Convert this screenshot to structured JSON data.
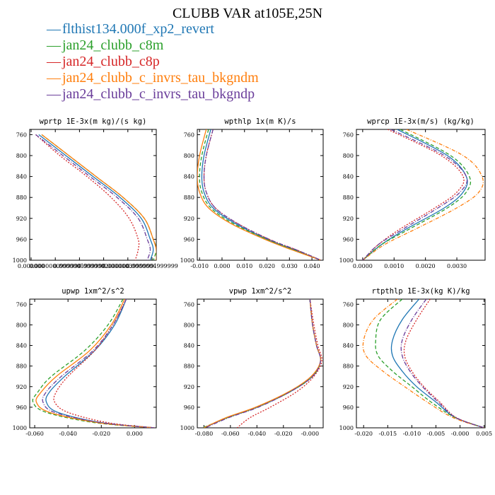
{
  "title": "CLUBB VAR at105E,25N",
  "legend": [
    {
      "name": "flthist134.000f_xp2_revert",
      "color": "#1f77b4"
    },
    {
      "name": "jan24_clubb_c8m",
      "color": "#2ca02c"
    },
    {
      "name": "jan24_clubb_c8p",
      "color": "#d62728"
    },
    {
      "name": "jan24_clubb_c_invrs_tau_bkgndm",
      "color": "#ff7f0e"
    },
    {
      "name": "jan24_clubb_c_invrs_tau_bkgndp",
      "color": "#6a3d9a"
    }
  ],
  "chart_data": [
    {
      "type": "line",
      "title": "wprtp  1E-3x(m kg)/(s kg)",
      "xlim": [
        0.0,
        4.2e-06
      ],
      "ylim": [
        1000,
        750
      ],
      "yticks": [
        "760",
        "800",
        "840",
        "880",
        "920",
        "960",
        "1000"
      ],
      "xticks": [
        "0.000000",
        "0.0000000999999",
        "0.0000001999999",
        "0.0000002000000",
        "0.0000003999999",
        "0.0000004999999"
      ],
      "y": [
        760,
        800,
        840,
        880,
        920,
        960,
        980,
        1000
      ],
      "series": [
        {
          "name": "flthist134.000f_xp2_revert",
          "color": "#1f77b4",
          "dash": "",
          "x": [
            3e-07,
            1.2e-06,
            2.1e-06,
            3e-06,
            3.7e-06,
            4e-06,
            4.1e-06,
            4e-06
          ]
        },
        {
          "name": "jan24_clubb_c8m",
          "color": "#2ca02c",
          "dash": "5,3",
          "x": [
            4e-07,
            1.3e-06,
            2.2e-06,
            3.1e-06,
            3.8e-06,
            4.1e-06,
            4.2e-06,
            4.1e-06
          ]
        },
        {
          "name": "jan24_clubb_c8p",
          "color": "#d62728",
          "dash": "2,2",
          "x": [
            2e-07,
            1e-06,
            1.9e-06,
            2.7e-06,
            3.3e-06,
            3.6e-06,
            3.6e-06,
            3.5e-06
          ]
        },
        {
          "name": "jan24_clubb_c_invrs_tau_bkgndm",
          "color": "#ff7f0e",
          "dash": "",
          "x": [
            4e-07,
            1.3e-06,
            2.2e-06,
            3.1e-06,
            3.8e-06,
            4.1e-06,
            4.2e-06,
            4.2e-06
          ]
        },
        {
          "name": "jan24_clubb_c_invrs_tau_bkgndp",
          "color": "#6a3d9a",
          "dash": "6,2,1,2",
          "x": [
            2e-07,
            1.1e-06,
            2e-06,
            2.9e-06,
            3.6e-06,
            3.9e-06,
            4e-06,
            3.9e-06
          ]
        }
      ]
    },
    {
      "type": "line",
      "title": "wpthlp  1x(m K)/s",
      "xlim": [
        -0.011,
        0.045
      ],
      "ylim": [
        1000,
        750
      ],
      "yticks": [
        "760",
        "800",
        "840",
        "880",
        "920",
        "960",
        "1000"
      ],
      "xticks": [
        "-0.010",
        "0.000",
        "0.010",
        "0.020",
        "0.030",
        "0.040"
      ],
      "y": [
        750,
        800,
        840,
        870,
        900,
        930,
        960,
        980,
        1000
      ],
      "series": [
        {
          "name": "flthist134.000f_xp2_revert",
          "color": "#1f77b4",
          "dash": "",
          "x": [
            -0.005,
            -0.008,
            -0.009,
            -0.008,
            -0.004,
            0.006,
            0.02,
            0.032,
            0.044
          ]
        },
        {
          "name": "jan24_clubb_c8m",
          "color": "#2ca02c",
          "dash": "5,3",
          "x": [
            -0.006,
            -0.009,
            -0.01,
            -0.009,
            -0.005,
            0.005,
            0.02,
            0.032,
            0.044
          ]
        },
        {
          "name": "jan24_clubb_c8p",
          "color": "#d62728",
          "dash": "2,2",
          "x": [
            -0.004,
            -0.007,
            -0.008,
            -0.007,
            -0.003,
            0.007,
            0.021,
            0.033,
            0.044
          ]
        },
        {
          "name": "jan24_clubb_c_invrs_tau_bkgndm",
          "color": "#ff7f0e",
          "dash": "",
          "x": [
            -0.007,
            -0.01,
            -0.011,
            -0.01,
            -0.006,
            0.004,
            0.019,
            0.031,
            0.044
          ]
        },
        {
          "name": "jan24_clubb_c_invrs_tau_bkgndp",
          "color": "#6a3d9a",
          "dash": "6,2,1,2",
          "x": [
            -0.004,
            -0.007,
            -0.008,
            -0.007,
            -0.003,
            0.007,
            0.021,
            0.033,
            0.044
          ]
        }
      ]
    },
    {
      "type": "line",
      "title": "wprcp  1E-3x(m/s) (kg/kg)",
      "xlim": [
        -0.0002,
        0.0039
      ],
      "ylim": [
        1000,
        750
      ],
      "yticks": [
        "760",
        "800",
        "840",
        "880",
        "920",
        "960",
        "1000"
      ],
      "xticks": [
        "0.0000",
        "0.0010",
        "0.0020",
        "0.0030"
      ],
      "y": [
        750,
        800,
        840,
        870,
        900,
        940,
        970,
        1000
      ],
      "series": [
        {
          "name": "flthist134.000f_xp2_revert",
          "color": "#1f77b4",
          "dash": "",
          "x": [
            0.0011,
            0.0027,
            0.0033,
            0.0032,
            0.0026,
            0.0014,
            0.0006,
            0.0
          ]
        },
        {
          "name": "jan24_clubb_c8m",
          "color": "#2ca02c",
          "dash": "5,3",
          "x": [
            0.0012,
            0.0028,
            0.0034,
            0.0033,
            0.0027,
            0.0015,
            0.0006,
            0.0
          ]
        },
        {
          "name": "jan24_clubb_c8p",
          "color": "#d62728",
          "dash": "2,2",
          "x": [
            0.0008,
            0.0025,
            0.0032,
            0.003,
            0.0023,
            0.0012,
            0.0005,
            0.0
          ]
        },
        {
          "name": "jan24_clubb_c_invrs_tau_bkgndm",
          "color": "#ff7f0e",
          "dash": "5,2,1,2",
          "x": [
            0.0014,
            0.0032,
            0.0038,
            0.0037,
            0.003,
            0.0017,
            0.0007,
            0.0
          ]
        },
        {
          "name": "jan24_clubb_c_invrs_tau_bkgndp",
          "color": "#6a3d9a",
          "dash": "6,2,1,2",
          "x": [
            0.0009,
            0.0026,
            0.0033,
            0.0031,
            0.0024,
            0.0013,
            0.0005,
            0.0
          ]
        }
      ]
    },
    {
      "type": "line",
      "title": "upwp  1xm^2/s^2",
      "xlim": [
        -0.063,
        0.013
      ],
      "ylim": [
        1000,
        750
      ],
      "yticks": [
        "760",
        "800",
        "840",
        "880",
        "920",
        "960",
        "1000"
      ],
      "xticks": [
        "-0.060",
        "-0.040",
        "-0.020",
        "0.000"
      ],
      "y": [
        750,
        800,
        850,
        900,
        930,
        950,
        970,
        990,
        1000
      ],
      "series": [
        {
          "name": "flthist134.000f_xp2_revert",
          "color": "#1f77b4",
          "dash": "",
          "x": [
            -0.005,
            -0.012,
            -0.024,
            -0.042,
            -0.051,
            -0.053,
            -0.046,
            -0.02,
            0.012
          ]
        },
        {
          "name": "jan24_clubb_c8m",
          "color": "#2ca02c",
          "dash": "5,3",
          "x": [
            -0.007,
            -0.016,
            -0.03,
            -0.05,
            -0.058,
            -0.061,
            -0.053,
            -0.024,
            0.012
          ]
        },
        {
          "name": "jan24_clubb_c8p",
          "color": "#d62728",
          "dash": "2,2",
          "x": [
            -0.005,
            -0.013,
            -0.024,
            -0.04,
            -0.047,
            -0.048,
            -0.04,
            -0.016,
            0.012
          ]
        },
        {
          "name": "jan24_clubb_c_invrs_tau_bkgndm",
          "color": "#ff7f0e",
          "dash": "",
          "x": [
            -0.006,
            -0.014,
            -0.027,
            -0.047,
            -0.056,
            -0.059,
            -0.051,
            -0.022,
            0.012
          ]
        },
        {
          "name": "jan24_clubb_c_invrs_tau_bkgndp",
          "color": "#6a3d9a",
          "dash": "6,2,1,2",
          "x": [
            -0.005,
            -0.013,
            -0.025,
            -0.044,
            -0.053,
            -0.055,
            -0.048,
            -0.02,
            0.012
          ]
        }
      ]
    },
    {
      "type": "line",
      "title": "vpwp  1xm^2/s^2",
      "xlim": [
        -0.085,
        0.01
      ],
      "ylim": [
        1000,
        750
      ],
      "yticks": [
        "760",
        "800",
        "840",
        "880",
        "920",
        "960",
        "1000"
      ],
      "xticks": [
        "-0.080",
        "-0.060",
        "-0.040",
        "-0.020",
        "-0.000"
      ],
      "y": [
        750,
        800,
        840,
        870,
        900,
        930,
        960,
        980,
        1000
      ],
      "series": [
        {
          "name": "flthist134.000f_xp2_revert",
          "color": "#1f77b4",
          "dash": "",
          "x": [
            0.0,
            0.002,
            0.005,
            0.008,
            0.002,
            -0.015,
            -0.04,
            -0.062,
            -0.08
          ]
        },
        {
          "name": "jan24_clubb_c8m",
          "color": "#2ca02c",
          "dash": "5,3",
          "x": [
            0.0,
            0.002,
            0.005,
            0.008,
            0.002,
            -0.015,
            -0.04,
            -0.062,
            -0.081
          ]
        },
        {
          "name": "jan24_clubb_c8p",
          "color": "#d62728",
          "dash": "2,2",
          "x": [
            0.0,
            0.003,
            0.006,
            0.009,
            0.003,
            -0.01,
            -0.03,
            -0.045,
            -0.055
          ]
        },
        {
          "name": "jan24_clubb_c_invrs_tau_bkgndm",
          "color": "#ff7f0e",
          "dash": "",
          "x": [
            0.0,
            0.002,
            0.005,
            0.008,
            0.001,
            -0.016,
            -0.041,
            -0.063,
            -0.08
          ]
        },
        {
          "name": "jan24_clubb_c_invrs_tau_bkgndp",
          "color": "#6a3d9a",
          "dash": "6,2,1,2",
          "x": [
            0.0,
            0.002,
            0.005,
            0.008,
            0.002,
            -0.015,
            -0.039,
            -0.061,
            -0.079
          ]
        }
      ]
    },
    {
      "type": "line",
      "title": "rtpthlp  1E-3x(kg K)/kg",
      "xlim": [
        -0.0215,
        0.0052
      ],
      "ylim": [
        1000,
        750
      ],
      "yticks": [
        "760",
        "800",
        "840",
        "880",
        "920",
        "960",
        "1000"
      ],
      "xticks": [
        "-0.020",
        "-0.015",
        "-0.010",
        "-0.005",
        "-0.000",
        "0.005"
      ],
      "y": [
        750,
        790,
        830,
        860,
        890,
        920,
        950,
        980,
        1000
      ],
      "series": [
        {
          "name": "flthist134.000f_xp2_revert",
          "color": "#1f77b4",
          "dash": "",
          "x": [
            -0.0085,
            -0.012,
            -0.014,
            -0.014,
            -0.012,
            -0.009,
            -0.005,
            -0.001,
            0.005
          ]
        },
        {
          "name": "jan24_clubb_c8m",
          "color": "#2ca02c",
          "dash": "5,3",
          "x": [
            -0.012,
            -0.0165,
            -0.0175,
            -0.017,
            -0.014,
            -0.01,
            -0.006,
            -0.001,
            0.005
          ]
        },
        {
          "name": "jan24_clubb_c8p",
          "color": "#d62728",
          "dash": "2,2",
          "x": [
            -0.0062,
            -0.009,
            -0.0112,
            -0.0115,
            -0.01,
            -0.0075,
            -0.0042,
            -0.0008,
            0.005
          ]
        },
        {
          "name": "jan24_clubb_c_invrs_tau_bkgndm",
          "color": "#ff7f0e",
          "dash": "5,2,1,2",
          "x": [
            -0.013,
            -0.018,
            -0.02,
            -0.0195,
            -0.016,
            -0.0115,
            -0.0068,
            -0.0015,
            0.005
          ]
        },
        {
          "name": "jan24_clubb_c_invrs_tau_bkgndp",
          "color": "#6a3d9a",
          "dash": "6,2,1,2",
          "x": [
            -0.007,
            -0.01,
            -0.012,
            -0.012,
            -0.0104,
            -0.0078,
            -0.0045,
            -0.0009,
            0.005
          ]
        }
      ]
    }
  ]
}
